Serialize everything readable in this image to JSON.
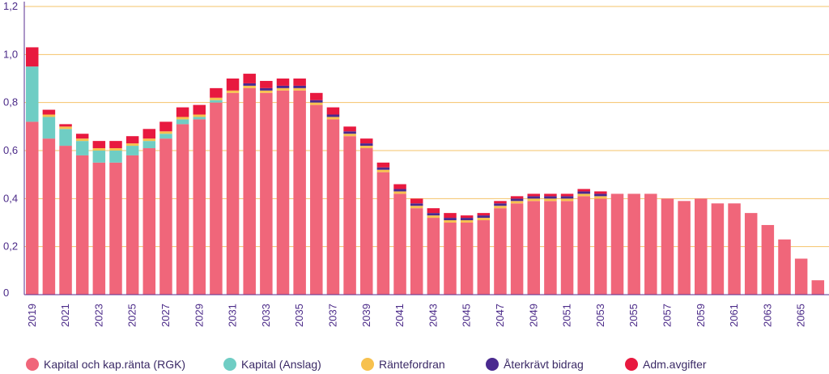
{
  "chart_data": {
    "type": "bar",
    "stacked": true,
    "grid": true,
    "legend_position": "bottom",
    "ylim": [
      0,
      1.2
    ],
    "y_ticks": [
      "0",
      "0,2",
      "0,4",
      "0,6",
      "0,8",
      "1,0",
      "1,2"
    ],
    "categories": [
      2019,
      2020,
      2021,
      2022,
      2023,
      2024,
      2025,
      2026,
      2027,
      2028,
      2029,
      2030,
      2031,
      2032,
      2033,
      2034,
      2035,
      2036,
      2037,
      2038,
      2039,
      2040,
      2041,
      2042,
      2043,
      2044,
      2045,
      2046,
      2047,
      2048,
      2049,
      2050,
      2051,
      2052,
      2053,
      2054,
      2055,
      2056,
      2057,
      2058,
      2059,
      2060,
      2061,
      2062,
      2063,
      2064,
      2065,
      2066
    ],
    "x_tick_labels": [
      "2019",
      "2021",
      "2023",
      "2025",
      "2027",
      "2029",
      "2031",
      "2033",
      "2035",
      "2037",
      "2039",
      "2041",
      "2043",
      "2045",
      "2047",
      "2049",
      "2051",
      "2053",
      "2055",
      "2057",
      "2059",
      "2061",
      "2063",
      "2065"
    ],
    "series": [
      {
        "name": "Kapital och kap.ränta (RGK)",
        "color": "#f0667a",
        "values": [
          0.72,
          0.65,
          0.62,
          0.58,
          0.55,
          0.55,
          0.58,
          0.61,
          0.65,
          0.71,
          0.73,
          0.8,
          0.84,
          0.86,
          0.84,
          0.85,
          0.85,
          0.79,
          0.73,
          0.66,
          0.61,
          0.51,
          0.42,
          0.36,
          0.32,
          0.3,
          0.3,
          0.31,
          0.36,
          0.38,
          0.39,
          0.39,
          0.39,
          0.41,
          0.4,
          0.42,
          0.42,
          0.42,
          0.4,
          0.39,
          0.4,
          0.38,
          0.38,
          0.34,
          0.29,
          0.23,
          0.15,
          0.06
        ]
      },
      {
        "name": "Kapital (Anslag)",
        "color": "#6fcdc4",
        "values": [
          0.23,
          0.09,
          0.07,
          0.06,
          0.05,
          0.05,
          0.04,
          0.03,
          0.02,
          0.02,
          0.01,
          0.01,
          0,
          0,
          0,
          0,
          0,
          0,
          0,
          0,
          0,
          0,
          0,
          0,
          0,
          0,
          0,
          0,
          0,
          0,
          0,
          0,
          0,
          0,
          0,
          0,
          0,
          0,
          0,
          0,
          0,
          0,
          0,
          0,
          0,
          0,
          0,
          0
        ]
      },
      {
        "name": "Räntefordran",
        "color": "#f7c14e",
        "values": [
          0,
          0.01,
          0.01,
          0.01,
          0.01,
          0.01,
          0.01,
          0.01,
          0.01,
          0.01,
          0.01,
          0.01,
          0.01,
          0.01,
          0.01,
          0.01,
          0.01,
          0.01,
          0.01,
          0.01,
          0.01,
          0.01,
          0.01,
          0.01,
          0.01,
          0.01,
          0.01,
          0.01,
          0.01,
          0.01,
          0.01,
          0.01,
          0.01,
          0.01,
          0.01,
          0,
          0,
          0,
          0,
          0,
          0,
          0,
          0,
          0,
          0,
          0,
          0,
          0
        ]
      },
      {
        "name": "Återkrävt bidrag",
        "color": "#4a2a8f",
        "values": [
          0,
          0,
          0,
          0,
          0,
          0,
          0,
          0,
          0,
          0,
          0,
          0,
          0,
          0.01,
          0.01,
          0.01,
          0.01,
          0.01,
          0.01,
          0.01,
          0.01,
          0.01,
          0.01,
          0.01,
          0.01,
          0.01,
          0.01,
          0.01,
          0.01,
          0.01,
          0.01,
          0.01,
          0.01,
          0.01,
          0.01,
          0,
          0,
          0,
          0,
          0,
          0,
          0,
          0,
          0,
          0,
          0,
          0,
          0
        ]
      },
      {
        "name": "Adm.avgifter",
        "color": "#e8193f",
        "values": [
          0.08,
          0.02,
          0.01,
          0.02,
          0.03,
          0.03,
          0.03,
          0.04,
          0.04,
          0.04,
          0.04,
          0.04,
          0.05,
          0.04,
          0.03,
          0.03,
          0.03,
          0.03,
          0.03,
          0.02,
          0.02,
          0.02,
          0.02,
          0.02,
          0.02,
          0.02,
          0.01,
          0.01,
          0.01,
          0.01,
          0.01,
          0.01,
          0.01,
          0.01,
          0.01,
          0,
          0,
          0,
          0,
          0,
          0,
          0,
          0,
          0,
          0,
          0,
          0,
          0
        ]
      }
    ]
  },
  "legend": {
    "items": [
      {
        "label": "Kapital och kap.ränta (RGK)",
        "color": "#f0667a"
      },
      {
        "label": "Kapital (Anslag)",
        "color": "#6fcdc4"
      },
      {
        "label": "Räntefordran",
        "color": "#f7c14e"
      },
      {
        "label": "Återkrävt bidrag",
        "color": "#4a2a8f"
      },
      {
        "label": "Adm.avgifter",
        "color": "#e8193f"
      }
    ]
  },
  "colors": {
    "gridline": "#f5c36a",
    "axis": "#5a2d91",
    "tick_text": "#4b2a88"
  }
}
